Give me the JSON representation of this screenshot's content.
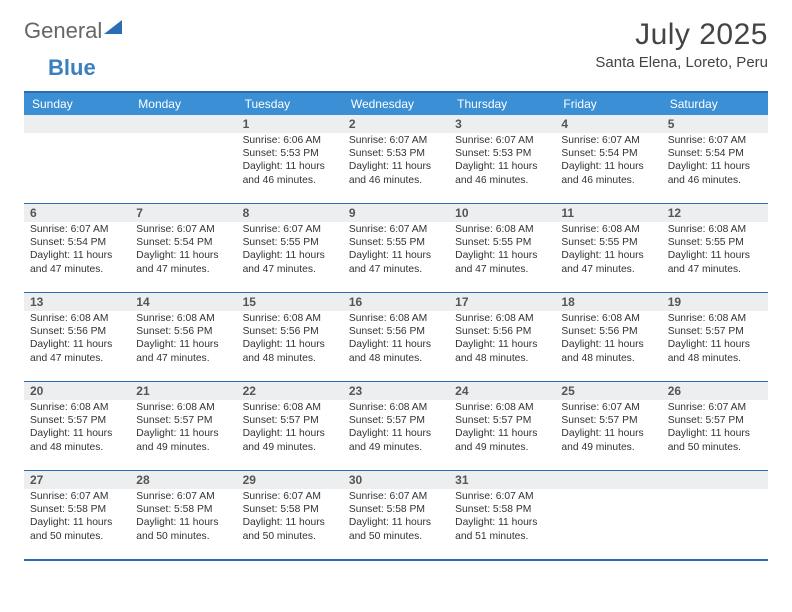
{
  "logo": {
    "general": "General",
    "blue": "Blue"
  },
  "title": "July 2025",
  "location": "Santa Elena, Loreto, Peru",
  "day_headers": [
    "Sunday",
    "Monday",
    "Tuesday",
    "Wednesday",
    "Thursday",
    "Friday",
    "Saturday"
  ],
  "colors": {
    "header_bg": "#3b8fd4",
    "header_text": "#ffffff",
    "border": "#2a6db5",
    "daynum_bg": "#eceef0",
    "text": "#333333",
    "title_text": "#444444"
  },
  "weeks": [
    [
      {
        "n": "",
        "sunrise": "",
        "sunset": "",
        "daylight": ""
      },
      {
        "n": "",
        "sunrise": "",
        "sunset": "",
        "daylight": ""
      },
      {
        "n": "1",
        "sunrise": "Sunrise: 6:06 AM",
        "sunset": "Sunset: 5:53 PM",
        "daylight": "Daylight: 11 hours and 46 minutes."
      },
      {
        "n": "2",
        "sunrise": "Sunrise: 6:07 AM",
        "sunset": "Sunset: 5:53 PM",
        "daylight": "Daylight: 11 hours and 46 minutes."
      },
      {
        "n": "3",
        "sunrise": "Sunrise: 6:07 AM",
        "sunset": "Sunset: 5:53 PM",
        "daylight": "Daylight: 11 hours and 46 minutes."
      },
      {
        "n": "4",
        "sunrise": "Sunrise: 6:07 AM",
        "sunset": "Sunset: 5:54 PM",
        "daylight": "Daylight: 11 hours and 46 minutes."
      },
      {
        "n": "5",
        "sunrise": "Sunrise: 6:07 AM",
        "sunset": "Sunset: 5:54 PM",
        "daylight": "Daylight: 11 hours and 46 minutes."
      }
    ],
    [
      {
        "n": "6",
        "sunrise": "Sunrise: 6:07 AM",
        "sunset": "Sunset: 5:54 PM",
        "daylight": "Daylight: 11 hours and 47 minutes."
      },
      {
        "n": "7",
        "sunrise": "Sunrise: 6:07 AM",
        "sunset": "Sunset: 5:54 PM",
        "daylight": "Daylight: 11 hours and 47 minutes."
      },
      {
        "n": "8",
        "sunrise": "Sunrise: 6:07 AM",
        "sunset": "Sunset: 5:55 PM",
        "daylight": "Daylight: 11 hours and 47 minutes."
      },
      {
        "n": "9",
        "sunrise": "Sunrise: 6:07 AM",
        "sunset": "Sunset: 5:55 PM",
        "daylight": "Daylight: 11 hours and 47 minutes."
      },
      {
        "n": "10",
        "sunrise": "Sunrise: 6:08 AM",
        "sunset": "Sunset: 5:55 PM",
        "daylight": "Daylight: 11 hours and 47 minutes."
      },
      {
        "n": "11",
        "sunrise": "Sunrise: 6:08 AM",
        "sunset": "Sunset: 5:55 PM",
        "daylight": "Daylight: 11 hours and 47 minutes."
      },
      {
        "n": "12",
        "sunrise": "Sunrise: 6:08 AM",
        "sunset": "Sunset: 5:55 PM",
        "daylight": "Daylight: 11 hours and 47 minutes."
      }
    ],
    [
      {
        "n": "13",
        "sunrise": "Sunrise: 6:08 AM",
        "sunset": "Sunset: 5:56 PM",
        "daylight": "Daylight: 11 hours and 47 minutes."
      },
      {
        "n": "14",
        "sunrise": "Sunrise: 6:08 AM",
        "sunset": "Sunset: 5:56 PM",
        "daylight": "Daylight: 11 hours and 47 minutes."
      },
      {
        "n": "15",
        "sunrise": "Sunrise: 6:08 AM",
        "sunset": "Sunset: 5:56 PM",
        "daylight": "Daylight: 11 hours and 48 minutes."
      },
      {
        "n": "16",
        "sunrise": "Sunrise: 6:08 AM",
        "sunset": "Sunset: 5:56 PM",
        "daylight": "Daylight: 11 hours and 48 minutes."
      },
      {
        "n": "17",
        "sunrise": "Sunrise: 6:08 AM",
        "sunset": "Sunset: 5:56 PM",
        "daylight": "Daylight: 11 hours and 48 minutes."
      },
      {
        "n": "18",
        "sunrise": "Sunrise: 6:08 AM",
        "sunset": "Sunset: 5:56 PM",
        "daylight": "Daylight: 11 hours and 48 minutes."
      },
      {
        "n": "19",
        "sunrise": "Sunrise: 6:08 AM",
        "sunset": "Sunset: 5:57 PM",
        "daylight": "Daylight: 11 hours and 48 minutes."
      }
    ],
    [
      {
        "n": "20",
        "sunrise": "Sunrise: 6:08 AM",
        "sunset": "Sunset: 5:57 PM",
        "daylight": "Daylight: 11 hours and 48 minutes."
      },
      {
        "n": "21",
        "sunrise": "Sunrise: 6:08 AM",
        "sunset": "Sunset: 5:57 PM",
        "daylight": "Daylight: 11 hours and 49 minutes."
      },
      {
        "n": "22",
        "sunrise": "Sunrise: 6:08 AM",
        "sunset": "Sunset: 5:57 PM",
        "daylight": "Daylight: 11 hours and 49 minutes."
      },
      {
        "n": "23",
        "sunrise": "Sunrise: 6:08 AM",
        "sunset": "Sunset: 5:57 PM",
        "daylight": "Daylight: 11 hours and 49 minutes."
      },
      {
        "n": "24",
        "sunrise": "Sunrise: 6:08 AM",
        "sunset": "Sunset: 5:57 PM",
        "daylight": "Daylight: 11 hours and 49 minutes."
      },
      {
        "n": "25",
        "sunrise": "Sunrise: 6:07 AM",
        "sunset": "Sunset: 5:57 PM",
        "daylight": "Daylight: 11 hours and 49 minutes."
      },
      {
        "n": "26",
        "sunrise": "Sunrise: 6:07 AM",
        "sunset": "Sunset: 5:57 PM",
        "daylight": "Daylight: 11 hours and 50 minutes."
      }
    ],
    [
      {
        "n": "27",
        "sunrise": "Sunrise: 6:07 AM",
        "sunset": "Sunset: 5:58 PM",
        "daylight": "Daylight: 11 hours and 50 minutes."
      },
      {
        "n": "28",
        "sunrise": "Sunrise: 6:07 AM",
        "sunset": "Sunset: 5:58 PM",
        "daylight": "Daylight: 11 hours and 50 minutes."
      },
      {
        "n": "29",
        "sunrise": "Sunrise: 6:07 AM",
        "sunset": "Sunset: 5:58 PM",
        "daylight": "Daylight: 11 hours and 50 minutes."
      },
      {
        "n": "30",
        "sunrise": "Sunrise: 6:07 AM",
        "sunset": "Sunset: 5:58 PM",
        "daylight": "Daylight: 11 hours and 50 minutes."
      },
      {
        "n": "31",
        "sunrise": "Sunrise: 6:07 AM",
        "sunset": "Sunset: 5:58 PM",
        "daylight": "Daylight: 11 hours and 51 minutes."
      },
      {
        "n": "",
        "sunrise": "",
        "sunset": "",
        "daylight": ""
      },
      {
        "n": "",
        "sunrise": "",
        "sunset": "",
        "daylight": ""
      }
    ]
  ]
}
